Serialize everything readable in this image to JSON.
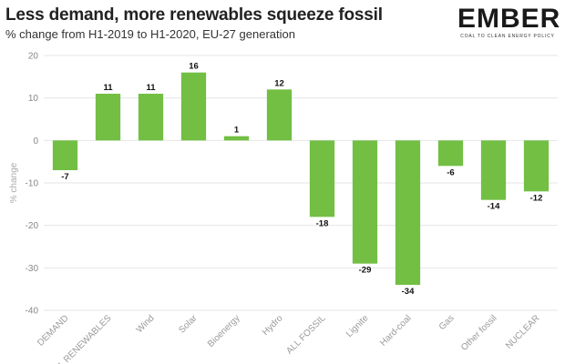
{
  "title": "Less demand, more renewables squeeze fossil",
  "subtitle": "% change from H1-2019 to H1-2020, EU-27 generation",
  "logo": {
    "word": "EMBER",
    "tagline": "COAL TO CLEAN ENERGY POLICY"
  },
  "colors": {
    "bar": "#72BF44",
    "grid": "#e6e6e6"
  },
  "chart_data": {
    "type": "bar",
    "title": "Less demand, more renewables squeeze fossil",
    "subtitle": "% change from H1-2019 to H1-2020, EU-27 generation",
    "xlabel": "",
    "ylabel": "% change",
    "ylim": [
      -40,
      20
    ],
    "yticks": [
      20,
      10,
      0,
      -10,
      -20,
      -30,
      -40
    ],
    "grid": true,
    "categories": [
      "DEMAND",
      "ALL RENEWABLES",
      "Wind",
      "Solar",
      "Bioenergy",
      "Hydro",
      "ALL FOSSIL",
      "Lignite",
      "Hard-coal",
      "Gas",
      "Other fossil",
      "NUCLEAR"
    ],
    "values": [
      -7,
      11,
      11,
      16,
      1,
      12,
      -18,
      -29,
      -34,
      -6,
      -14,
      -12
    ]
  }
}
